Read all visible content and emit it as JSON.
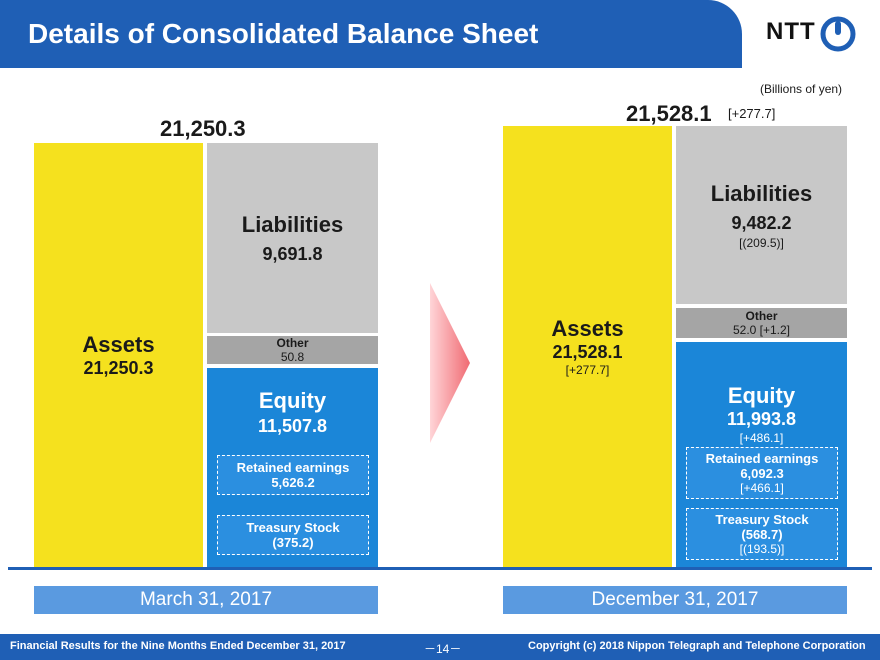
{
  "header": {
    "title": "Details of Consolidated Balance Sheet",
    "logo_text": "NTT",
    "units": "(Billions of yen)"
  },
  "left": {
    "total": "21,250.3",
    "assets_label": "Assets",
    "assets_value": "21,250.3",
    "liabilities_label": "Liabilities",
    "liabilities_value": "9,691.8",
    "other_label": "Other",
    "other_value": "50.8",
    "equity_label": "Equity",
    "equity_value": "11,507.8",
    "retained_label": "Retained earnings",
    "retained_value": "5,626.2",
    "treasury_label": "Treasury Stock",
    "treasury_value": "(375.2)",
    "date": "March 31, 2017"
  },
  "right": {
    "total": "21,528.1",
    "total_change": "[+277.7]",
    "assets_label": "Assets",
    "assets_value": "21,528.1",
    "assets_change": "[+277.7]",
    "liabilities_label": "Liabilities",
    "liabilities_value": "9,482.2",
    "liabilities_change": "[(209.5)]",
    "other_label": "Other",
    "other_value": "52.0 [+1.2]",
    "equity_label": "Equity",
    "equity_value": "11,993.8",
    "equity_change": "[+486.1]",
    "retained_label": "Retained earnings",
    "retained_value": "6,092.3",
    "retained_change": "[+466.1]",
    "treasury_label": "Treasury Stock",
    "treasury_value": "(568.7)",
    "treasury_change": "[(193.5)]",
    "date": "December 31, 2017"
  },
  "footer": {
    "left": "Financial Results for the Nine Months Ended December 31, 2017",
    "page": "－14－",
    "right": "Copyright (c) 2018  Nippon Telegraph and Telephone Corporation"
  },
  "colors": {
    "brand_blue": "#1f5fb5",
    "assets_yellow": "#f5e11e",
    "liabilities_gray": "#c8c8c8",
    "other_gray": "#a5a5a5",
    "equity_blue": "#1b86d8",
    "arrow_red": "#f06a72"
  }
}
